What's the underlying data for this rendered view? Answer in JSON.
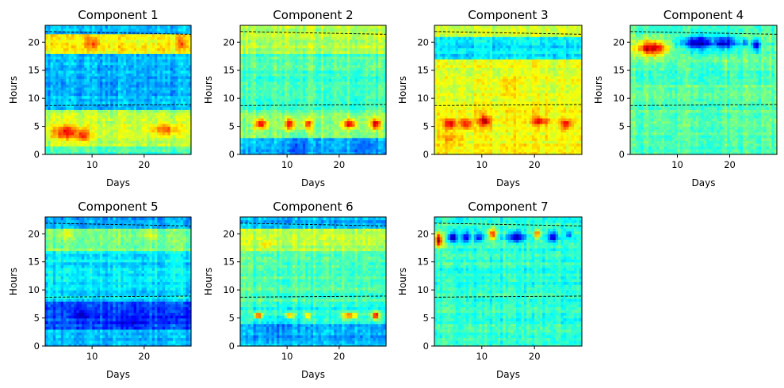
{
  "chart_data": [
    {
      "type": "heatmap",
      "title": "Component 1",
      "xlabel": "Days",
      "ylabel": "Hours",
      "xlim": [
        1,
        29
      ],
      "ylim": [
        0,
        23
      ],
      "xticks": [
        10,
        20
      ],
      "yticks": [
        0,
        5,
        10,
        15,
        20
      ],
      "colormap": "jet",
      "dashed_lines": [
        [
          21.9,
          21.4
        ],
        [
          8.7,
          8.9
        ]
      ],
      "seed": 1,
      "bands": [
        {
          "y": [
            0,
            1.5
          ],
          "v": 0.45
        },
        {
          "y": [
            1.5,
            7.8
          ],
          "v": 0.55
        },
        {
          "y": [
            7.8,
            18
          ],
          "v": 0.3
        },
        {
          "y": [
            18,
            21.5
          ],
          "v": 0.62
        },
        {
          "y": [
            21.5,
            23
          ],
          "v": 0.3
        }
      ],
      "blobs": [
        {
          "x": 5,
          "y": 4,
          "rx": 2.5,
          "ry": 1.2,
          "v": 0.85
        },
        {
          "x": 8,
          "y": 3.5,
          "rx": 1.5,
          "ry": 1.2,
          "v": 0.82
        },
        {
          "x": 24,
          "y": 4.5,
          "rx": 2.5,
          "ry": 1,
          "v": 0.75
        },
        {
          "x": 10,
          "y": 20,
          "rx": 1.5,
          "ry": 0.8,
          "v": 0.8
        },
        {
          "x": 27,
          "y": 20,
          "rx": 1,
          "ry": 0.8,
          "v": 0.78
        }
      ]
    },
    {
      "type": "heatmap",
      "title": "Component 2",
      "xlabel": "Days",
      "ylabel": "Hours",
      "xlim": [
        1,
        29
      ],
      "ylim": [
        0,
        23
      ],
      "xticks": [
        10,
        20
      ],
      "yticks": [
        0,
        5,
        10,
        15,
        20
      ],
      "colormap": "jet",
      "dashed_lines": [
        [
          21.9,
          21.4
        ],
        [
          8.7,
          8.9
        ]
      ],
      "seed": 2,
      "bands": [
        {
          "y": [
            0,
            3
          ],
          "v": 0.3
        },
        {
          "y": [
            3,
            8
          ],
          "v": 0.5
        },
        {
          "y": [
            8,
            18
          ],
          "v": 0.45
        },
        {
          "y": [
            18,
            23
          ],
          "v": 0.55
        }
      ],
      "blobs": [
        {
          "x": 5,
          "y": 5.5,
          "rx": 1.2,
          "ry": 0.9,
          "v": 0.9
        },
        {
          "x": 10.5,
          "y": 5.5,
          "rx": 1,
          "ry": 0.9,
          "v": 0.9
        },
        {
          "x": 14,
          "y": 5.5,
          "rx": 0.8,
          "ry": 0.8,
          "v": 0.85
        },
        {
          "x": 22,
          "y": 5.5,
          "rx": 1.5,
          "ry": 0.8,
          "v": 0.88
        },
        {
          "x": 27,
          "y": 5.5,
          "rx": 1,
          "ry": 0.9,
          "v": 0.92
        },
        {
          "x": 12,
          "y": 1.5,
          "rx": 3,
          "ry": 1.5,
          "v": 0.2
        },
        {
          "x": 25,
          "y": 1.5,
          "rx": 3,
          "ry": 1.2,
          "v": 0.2
        }
      ]
    },
    {
      "type": "heatmap",
      "title": "Component 3",
      "xlabel": "Days",
      "ylabel": "Hours",
      "xlim": [
        1,
        29
      ],
      "ylim": [
        0,
        23
      ],
      "xticks": [
        10,
        20
      ],
      "yticks": [
        0,
        5,
        10,
        15,
        20
      ],
      "colormap": "jet",
      "dashed_lines": [
        [
          21.9,
          21.4
        ],
        [
          8.7,
          8.9
        ]
      ],
      "seed": 3,
      "bands": [
        {
          "y": [
            0,
            8
          ],
          "v": 0.62
        },
        {
          "y": [
            8,
            17
          ],
          "v": 0.6
        },
        {
          "y": [
            17,
            21
          ],
          "v": 0.35
        },
        {
          "y": [
            21,
            23
          ],
          "v": 0.6
        }
      ],
      "blobs": [
        {
          "x": 4,
          "y": 5.5,
          "rx": 1.3,
          "ry": 0.9,
          "v": 0.9
        },
        {
          "x": 7,
          "y": 5.5,
          "rx": 1.2,
          "ry": 0.9,
          "v": 0.88
        },
        {
          "x": 10.5,
          "y": 6,
          "rx": 1.2,
          "ry": 1,
          "v": 0.92
        },
        {
          "x": 21,
          "y": 6,
          "rx": 1.5,
          "ry": 0.8,
          "v": 0.88
        },
        {
          "x": 26,
          "y": 5.5,
          "rx": 1,
          "ry": 0.8,
          "v": 0.9
        },
        {
          "x": 4,
          "y": 3,
          "rx": 2,
          "ry": 1.5,
          "v": 0.72
        },
        {
          "x": 15,
          "y": 12,
          "rx": 2,
          "ry": 2,
          "v": 0.66
        }
      ]
    },
    {
      "type": "heatmap",
      "title": "Component 4",
      "xlabel": "Days",
      "ylabel": "Hours",
      "xlim": [
        1,
        29
      ],
      "ylim": [
        0,
        23
      ],
      "xticks": [
        10,
        20
      ],
      "yticks": [
        0,
        5,
        10,
        15,
        20
      ],
      "colormap": "jet",
      "dashed_lines": [
        [
          21.9,
          21.4
        ],
        [
          8.7,
          8.9
        ]
      ],
      "seed": 4,
      "bands": [
        {
          "y": [
            0,
            23
          ],
          "v": 0.46
        }
      ],
      "blobs": [
        {
          "x": 5,
          "y": 19,
          "rx": 3,
          "ry": 1.3,
          "v": 0.95
        },
        {
          "x": 14,
          "y": 20,
          "rx": 3,
          "ry": 1.2,
          "v": 0.05
        },
        {
          "x": 19,
          "y": 20,
          "rx": 2.5,
          "ry": 1.2,
          "v": 0.1
        },
        {
          "x": 25,
          "y": 19.5,
          "rx": 0.8,
          "ry": 1,
          "v": 0.1
        },
        {
          "x": 23,
          "y": 20,
          "rx": 0.5,
          "ry": 0.8,
          "v": 0.15
        }
      ]
    },
    {
      "type": "heatmap",
      "title": "Component 5",
      "xlabel": "Days",
      "ylabel": "Hours",
      "xlim": [
        1,
        29
      ],
      "ylim": [
        0,
        23
      ],
      "xticks": [
        10,
        20
      ],
      "yticks": [
        0,
        5,
        10,
        15,
        20
      ],
      "colormap": "jet",
      "dashed_lines": [
        [
          21.9,
          21.4
        ],
        [
          8.7,
          8.9
        ]
      ],
      "seed": 5,
      "bands": [
        {
          "y": [
            0,
            3
          ],
          "v": 0.3
        },
        {
          "y": [
            3,
            8
          ],
          "v": 0.2
        },
        {
          "y": [
            8,
            17
          ],
          "v": 0.35
        },
        {
          "y": [
            17,
            21
          ],
          "v": 0.5
        },
        {
          "y": [
            21,
            23
          ],
          "v": 0.3
        }
      ],
      "blobs": [
        {
          "x": 8,
          "y": 5.5,
          "rx": 2,
          "ry": 0.8,
          "v": 0.1
        },
        {
          "x": 17,
          "y": 4.5,
          "rx": 3,
          "ry": 1.2,
          "v": 0.1
        },
        {
          "x": 26,
          "y": 5,
          "rx": 2.5,
          "ry": 1,
          "v": 0.12
        },
        {
          "x": 5,
          "y": 20,
          "rx": 1.5,
          "ry": 0.8,
          "v": 0.62
        },
        {
          "x": 21,
          "y": 20,
          "rx": 1.5,
          "ry": 0.8,
          "v": 0.62
        }
      ]
    },
    {
      "type": "heatmap",
      "title": "Component 6",
      "xlabel": "Days",
      "ylabel": "Hours",
      "xlim": [
        1,
        29
      ],
      "ylim": [
        0,
        23
      ],
      "xticks": [
        10,
        20
      ],
      "yticks": [
        0,
        5,
        10,
        15,
        20
      ],
      "colormap": "jet",
      "dashed_lines": [
        [
          21.9,
          21.4
        ],
        [
          8.7,
          8.9
        ]
      ],
      "seed": 6,
      "bands": [
        {
          "y": [
            0,
            4
          ],
          "v": 0.3
        },
        {
          "y": [
            4,
            8
          ],
          "v": 0.4
        },
        {
          "y": [
            8,
            17
          ],
          "v": 0.45
        },
        {
          "y": [
            17,
            21
          ],
          "v": 0.55
        },
        {
          "y": [
            21,
            23
          ],
          "v": 0.3
        }
      ],
      "blobs": [
        {
          "x": 4.5,
          "y": 5.5,
          "rx": 0.8,
          "ry": 0.5,
          "v": 0.85
        },
        {
          "x": 10.5,
          "y": 5.5,
          "rx": 0.8,
          "ry": 0.5,
          "v": 0.78
        },
        {
          "x": 14,
          "y": 5.5,
          "rx": 0.6,
          "ry": 0.5,
          "v": 0.75
        },
        {
          "x": 22,
          "y": 5.5,
          "rx": 1.5,
          "ry": 0.6,
          "v": 0.8
        },
        {
          "x": 27,
          "y": 5.5,
          "rx": 0.8,
          "ry": 0.7,
          "v": 0.92
        },
        {
          "x": 8,
          "y": 3,
          "rx": 4,
          "ry": 1.5,
          "v": 0.25
        },
        {
          "x": 6,
          "y": 18,
          "rx": 1,
          "ry": 0.5,
          "v": 0.7
        }
      ]
    },
    {
      "type": "heatmap",
      "title": "Component 7",
      "xlabel": "Days",
      "ylabel": "Hours",
      "xlim": [
        1,
        29
      ],
      "ylim": [
        0,
        23
      ],
      "xticks": [
        10,
        20
      ],
      "yticks": [
        0,
        5,
        10,
        15,
        20
      ],
      "colormap": "jet",
      "dashed_lines": [
        [
          21.9,
          21.4
        ],
        [
          8.7,
          8.9
        ]
      ],
      "seed": 7,
      "bands": [
        {
          "y": [
            0,
            23
          ],
          "v": 0.42
        }
      ],
      "blobs": [
        {
          "x": 1.8,
          "y": 19,
          "rx": 0.8,
          "ry": 1.2,
          "v": 0.95
        },
        {
          "x": 4.5,
          "y": 19.5,
          "rx": 0.8,
          "ry": 1,
          "v": 0.05
        },
        {
          "x": 7,
          "y": 19.5,
          "rx": 0.8,
          "ry": 1,
          "v": 0.1
        },
        {
          "x": 9.5,
          "y": 19.5,
          "rx": 0.8,
          "ry": 1,
          "v": 0.15
        },
        {
          "x": 12,
          "y": 20,
          "rx": 0.7,
          "ry": 1,
          "v": 0.82
        },
        {
          "x": 16.5,
          "y": 19.5,
          "rx": 1.5,
          "ry": 1,
          "v": 0.08
        },
        {
          "x": 20.5,
          "y": 20,
          "rx": 0.6,
          "ry": 0.8,
          "v": 0.75
        },
        {
          "x": 23.5,
          "y": 19.5,
          "rx": 1,
          "ry": 0.9,
          "v": 0.1
        },
        {
          "x": 26.5,
          "y": 20,
          "rx": 0.6,
          "ry": 0.6,
          "v": 0.2
        }
      ]
    }
  ]
}
